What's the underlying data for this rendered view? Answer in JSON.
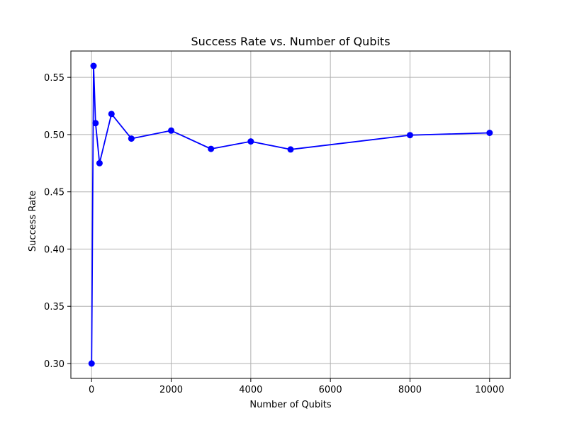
{
  "chart_data": {
    "type": "line",
    "title": "Success Rate vs. Number of Qubits",
    "xlabel": "Number of Qubits",
    "ylabel": "Success Rate",
    "x": [
      1,
      50,
      100,
      200,
      500,
      1000,
      2000,
      3000,
      4000,
      5000,
      8000,
      10000
    ],
    "series": [
      {
        "values": [
          0.3,
          0.56,
          0.51,
          0.475,
          0.518,
          0.4965,
          0.5035,
          0.4875,
          0.494,
          0.487,
          0.4995,
          0.5015
        ],
        "color": "#0000ff",
        "marker": "circle"
      }
    ],
    "xlim": [
      -520,
      10520
    ],
    "ylim": [
      0.287,
      0.573
    ],
    "xticks": [
      {
        "value": 0,
        "label": "0"
      },
      {
        "value": 2000,
        "label": "2000"
      },
      {
        "value": 4000,
        "label": "4000"
      },
      {
        "value": 6000,
        "label": "6000"
      },
      {
        "value": 8000,
        "label": "8000"
      },
      {
        "value": 10000,
        "label": "10000"
      }
    ],
    "yticks": [
      {
        "value": 0.3,
        "label": "0.30"
      },
      {
        "value": 0.35,
        "label": "0.35"
      },
      {
        "value": 0.4,
        "label": "0.40"
      },
      {
        "value": 0.45,
        "label": "0.45"
      },
      {
        "value": 0.5,
        "label": "0.50"
      },
      {
        "value": 0.55,
        "label": "0.55"
      }
    ],
    "grid": true,
    "legend": false,
    "grid_color": "#b0b0b0",
    "axis_color": "#000000"
  }
}
